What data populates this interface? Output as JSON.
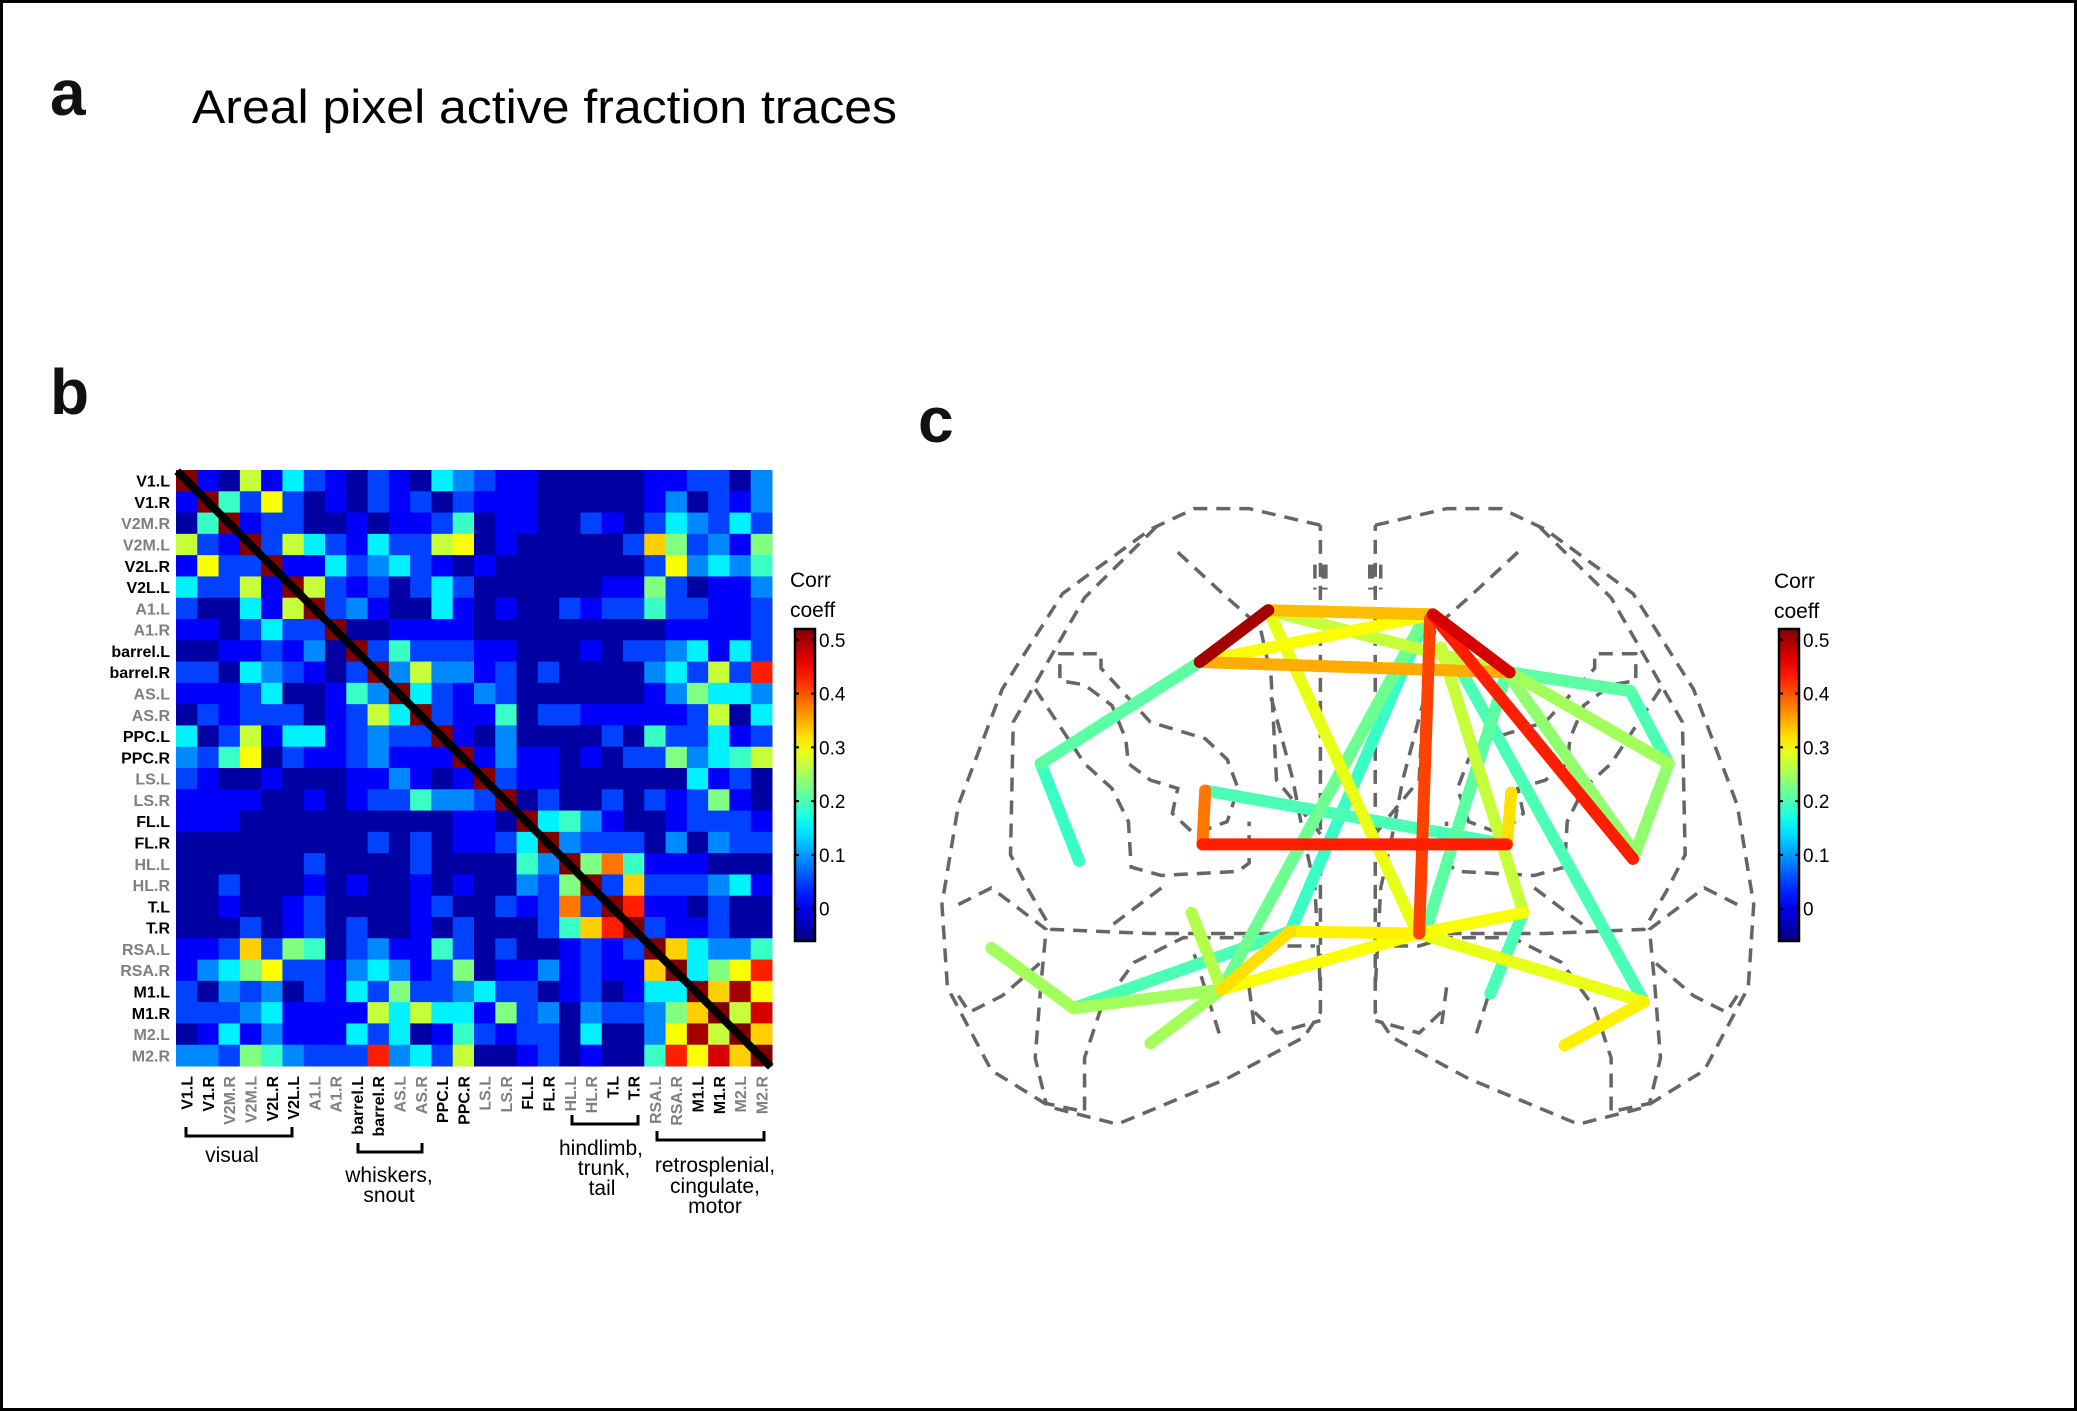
{
  "panels": {
    "a": "a",
    "b": "b",
    "c": "c"
  },
  "panel_a": {
    "title": "Areal pixel active fraction traces"
  },
  "colorbar": {
    "label_line1": "Corr",
    "label_line2": "coeff",
    "ticks": [
      0,
      0.1,
      0.2,
      0.3,
      0.4,
      0.5
    ],
    "tick_labels": [
      "0",
      "0.1",
      "0.2",
      "0.3",
      "0.4",
      "0.5"
    ],
    "range": [
      -0.06,
      0.52
    ],
    "colormap": "jet"
  },
  "groups": [
    {
      "label_lines": [
        "visual"
      ]
    },
    {
      "label_lines": [
        "whiskers,",
        "snout"
      ]
    },
    {
      "label_lines": [
        "hindlimb,",
        "trunk,",
        "tail"
      ]
    },
    {
      "label_lines": [
        "retrosplenial,",
        "cingulate,",
        "motor"
      ]
    }
  ],
  "chart_data": [
    {
      "type": "heatmap",
      "title": "",
      "symmetric": true,
      "diagonal": "masked (black line)",
      "colormap": "jet",
      "clim": [
        -0.06,
        0.52
      ],
      "label_colors": {
        "highlight": "#000000",
        "normal": "#7f7f7f"
      },
      "areas": [
        {
          "name": "V1.L",
          "highlight": true
        },
        {
          "name": "V1.R",
          "highlight": true
        },
        {
          "name": "V2M.R",
          "highlight": false
        },
        {
          "name": "V2M.L",
          "highlight": false
        },
        {
          "name": "V2L.R",
          "highlight": true
        },
        {
          "name": "V2L.L",
          "highlight": true
        },
        {
          "name": "A1.L",
          "highlight": false
        },
        {
          "name": "A1.R",
          "highlight": false
        },
        {
          "name": "barrel.L",
          "highlight": true
        },
        {
          "name": "barrel.R",
          "highlight": true
        },
        {
          "name": "AS.L",
          "highlight": false
        },
        {
          "name": "AS.R",
          "highlight": false
        },
        {
          "name": "PPC.L",
          "highlight": true
        },
        {
          "name": "PPC.R",
          "highlight": true
        },
        {
          "name": "LS.L",
          "highlight": false
        },
        {
          "name": "LS.R",
          "highlight": false
        },
        {
          "name": "FL.L",
          "highlight": true
        },
        {
          "name": "FL.R",
          "highlight": true
        },
        {
          "name": "HL.L",
          "highlight": false
        },
        {
          "name": "HL.R",
          "highlight": false
        },
        {
          "name": "T.L",
          "highlight": true
        },
        {
          "name": "T.R",
          "highlight": true
        },
        {
          "name": "RSA.L",
          "highlight": false
        },
        {
          "name": "RSA.R",
          "highlight": false
        },
        {
          "name": "M1.L",
          "highlight": true
        },
        {
          "name": "M1.R",
          "highlight": true
        },
        {
          "name": "M2.L",
          "highlight": false
        },
        {
          "name": "M2.R",
          "highlight": false
        }
      ],
      "upper_triangle": [
        [
          0.01,
          -0.04,
          0.27,
          0.01,
          0.15,
          0.05,
          0.01,
          -0.04,
          0.05,
          0.01,
          -0.04,
          0.15,
          0.09,
          0.05,
          0.01,
          0.01,
          -0.04,
          -0.04,
          -0.04,
          -0.04,
          -0.04,
          0.01,
          0.01,
          0.05,
          0.05,
          -0.04,
          0.09
        ],
        [
          0.19,
          0.05,
          0.3,
          0.05,
          -0.04,
          0.01,
          -0.04,
          0.05,
          0.01,
          0.05,
          -0.04,
          0.05,
          0.01,
          0.01,
          0.01,
          -0.04,
          -0.04,
          -0.04,
          -0.04,
          -0.04,
          0.01,
          0.09,
          -0.04,
          0.05,
          0.01,
          0.09
        ],
        [
          0.01,
          0.05,
          0.05,
          -0.04,
          -0.04,
          0.01,
          -0.04,
          0.01,
          0.01,
          0.05,
          0.19,
          -0.04,
          0.01,
          0.01,
          -0.04,
          -0.04,
          0.05,
          0.01,
          -0.04,
          0.05,
          0.15,
          0.09,
          0.05,
          0.15,
          0.05
        ],
        [
          0.05,
          0.27,
          0.15,
          0.05,
          0.01,
          0.15,
          0.05,
          0.05,
          0.27,
          0.3,
          -0.04,
          0.01,
          -0.04,
          -0.04,
          -0.04,
          -0.04,
          -0.04,
          0.05,
          0.33,
          0.23,
          0.05,
          0.09,
          0.01,
          0.23
        ],
        [
          0.01,
          0.01,
          0.15,
          0.05,
          0.09,
          0.15,
          0.05,
          0.01,
          -0.04,
          0.01,
          -0.04,
          -0.04,
          -0.04,
          -0.04,
          -0.04,
          -0.04,
          -0.04,
          0.05,
          0.3,
          0.09,
          0.15,
          0.09,
          0.19
        ],
        [
          0.27,
          0.05,
          0.01,
          0.05,
          -0.04,
          0.05,
          0.15,
          0.05,
          -0.04,
          -0.04,
          -0.04,
          -0.04,
          -0.04,
          -0.04,
          0.01,
          0.01,
          0.23,
          0.05,
          -0.04,
          0.01,
          0.01,
          0.09
        ],
        [
          0.05,
          0.09,
          0.01,
          -0.04,
          -0.04,
          0.15,
          0.01,
          -0.04,
          0.01,
          -0.04,
          -0.04,
          0.05,
          0.01,
          0.05,
          0.05,
          0.19,
          0.05,
          0.05,
          0.01,
          0.01,
          0.05
        ],
        [
          -0.04,
          -0.04,
          0.01,
          0.01,
          0.01,
          0.01,
          -0.04,
          -0.04,
          -0.04,
          -0.04,
          -0.04,
          -0.04,
          -0.04,
          -0.04,
          -0.04,
          0.01,
          0.01,
          0.01,
          0.01,
          0.05
        ],
        [
          0.05,
          0.19,
          0.05,
          0.05,
          0.05,
          0.01,
          0.01,
          -0.04,
          -0.04,
          -0.04,
          0.01,
          -0.04,
          0.05,
          0.05,
          0.09,
          0.15,
          0.01,
          0.15,
          0.05
        ],
        [
          0.09,
          0.27,
          0.09,
          0.09,
          0.01,
          0.05,
          -0.04,
          0.05,
          -0.04,
          -0.04,
          -0.04,
          -0.04,
          0.09,
          0.15,
          0.05,
          0.27,
          0.05,
          0.43
        ],
        [
          0.15,
          0.05,
          0.01,
          0.09,
          0.05,
          -0.04,
          -0.04,
          -0.04,
          -0.04,
          -0.04,
          -0.04,
          0.01,
          0.09,
          0.23,
          0.15,
          0.15,
          0.09
        ],
        [
          0.05,
          0.01,
          0.01,
          0.19,
          -0.04,
          0.05,
          0.05,
          0.01,
          0.01,
          0.01,
          0.01,
          0.01,
          0.05,
          0.27,
          -0.04,
          0.15
        ],
        [
          0.01,
          -0.04,
          0.09,
          -0.04,
          -0.04,
          -0.04,
          -0.04,
          0.05,
          -0.04,
          0.19,
          0.05,
          0.05,
          0.15,
          0.01,
          0.05
        ],
        [
          0.01,
          0.09,
          0.01,
          0.01,
          -0.04,
          0.01,
          -0.04,
          0.05,
          0.05,
          0.23,
          0.09,
          0.15,
          0.19,
          0.27
        ],
        [
          0.05,
          0.01,
          0.01,
          -0.04,
          -0.04,
          -0.04,
          -0.04,
          -0.04,
          -0.04,
          0.15,
          0.01,
          0.05,
          -0.04
        ],
        [
          -0.04,
          0.05,
          -0.04,
          -0.04,
          0.05,
          -0.04,
          0.05,
          0.01,
          0.05,
          0.23,
          0.01,
          -0.04
        ],
        [
          0.15,
          0.19,
          0.09,
          0.01,
          -0.04,
          -0.04,
          0.01,
          0.05,
          0.05,
          0.05,
          0.01
        ],
        [
          0.09,
          0.05,
          0.05,
          0.05,
          -0.04,
          0.09,
          -0.04,
          0.09,
          0.05,
          0.05
        ],
        [
          0.23,
          0.38,
          0.19,
          0.01,
          0.01,
          0.01,
          -0.04,
          -0.04,
          -0.04
        ],
        [
          0.05,
          0.33,
          0.05,
          0.05,
          0.05,
          0.09,
          0.15,
          0.01
        ],
        [
          0.43,
          0.01,
          0.01,
          -0.04,
          0.05,
          -0.04,
          -0.04
        ],
        [
          0.05,
          0.01,
          0.01,
          0.05,
          -0.04,
          -0.04
        ],
        [
          0.33,
          0.15,
          0.09,
          0.09,
          0.19
        ],
        [
          0.15,
          0.23,
          0.3,
          0.43
        ],
        [
          0.33,
          0.5,
          0.3
        ],
        [
          0.27,
          0.47
        ],
        [
          0.33
        ]
      ]
    },
    {
      "type": "network",
      "title": "",
      "colormap": "jet",
      "clim": [
        -0.06,
        0.52
      ],
      "edge_values": [
        0.34,
        0.5,
        0.35,
        0.3,
        0.27,
        0.47,
        0.21,
        0.19,
        0.41,
        0.29,
        0.22,
        0.19,
        0.27,
        0.2,
        0.43,
        0.21,
        0.2,
        0.25,
        0.24,
        0.24,
        0.21,
        0.2,
        0.38,
        0.43,
        0.32,
        0.2,
        0.31,
        0.32,
        0.3,
        0.25,
        0.25,
        0.2,
        0.25,
        0.26,
        0.3,
        0.29,
        0.31
      ]
    }
  ]
}
